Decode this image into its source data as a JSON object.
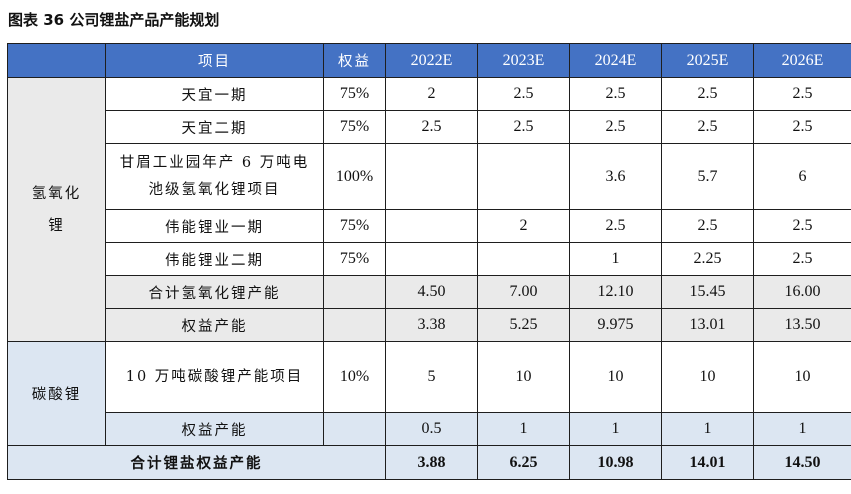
{
  "title": "图表 36 公司锂盐产品产能规划",
  "header": [
    "",
    "项目",
    "权益",
    "2022E",
    "2023E",
    "2024E",
    "2025E",
    "2026E"
  ],
  "groups": {
    "lioh": "氢氧化锂",
    "li2co3": "碳酸锂"
  },
  "rows": [
    {
      "item": "天宜一期",
      "equity": "75%",
      "v": [
        "2",
        "2.5",
        "2.5",
        "2.5",
        "2.5"
      ]
    },
    {
      "item": "天宜二期",
      "equity": "75%",
      "v": [
        "2.5",
        "2.5",
        "2.5",
        "2.5",
        "2.5"
      ]
    },
    {
      "item": "甘眉工业园年产 6 万吨电池级氢氧化锂项目",
      "equity": "100%",
      "v": [
        "",
        "",
        "3.6",
        "5.7",
        "6"
      ]
    },
    {
      "item": "伟能锂业一期",
      "equity": "75%",
      "v": [
        "",
        "2",
        "2.5",
        "2.5",
        "2.5"
      ]
    },
    {
      "item": "伟能锂业二期",
      "equity": "75%",
      "v": [
        "",
        "",
        "1",
        "2.25",
        "2.5"
      ]
    },
    {
      "item": "合计氢氧化锂产能",
      "equity": "",
      "v": [
        "4.50",
        "7.00",
        "12.10",
        "15.45",
        "16.00"
      ]
    },
    {
      "item": "权益产能",
      "equity": "",
      "v": [
        "3.38",
        "5.25",
        "9.975",
        "13.01",
        "13.50"
      ]
    },
    {
      "item": "10 万吨碳酸锂产能项目",
      "equity": "10%",
      "v": [
        "5",
        "10",
        "10",
        "10",
        "10"
      ]
    },
    {
      "item": "权益产能",
      "equity": "",
      "v": [
        "0.5",
        "1",
        "1",
        "1",
        "1"
      ]
    }
  ],
  "total": {
    "label": "合计锂盐权益产能",
    "v": [
      "3.88",
      "6.25",
      "10.98",
      "14.01",
      "14.50"
    ]
  }
}
